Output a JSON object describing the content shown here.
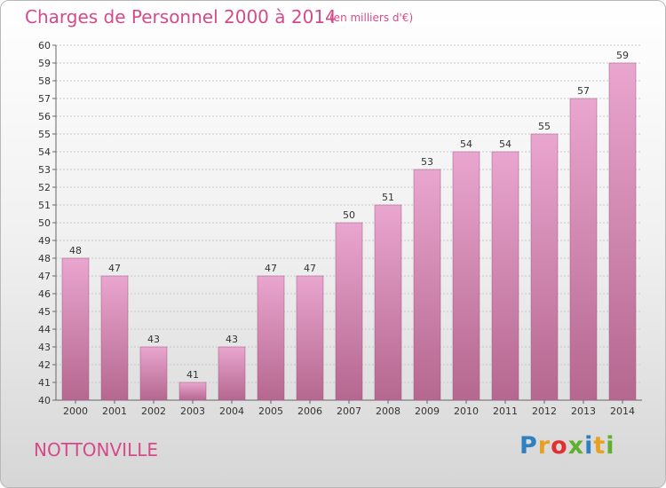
{
  "title": "Charges de Personnel 2000 à 2014",
  "subtitle": "(en milliers d'€)",
  "commune": "NOTTONVILLE",
  "logo": {
    "text": "Proxiti",
    "colors": [
      "#2f80c0",
      "#e8a020",
      "#e03030",
      "#60b030",
      "#2f80c0",
      "#e8a020",
      "#60b030"
    ]
  },
  "colors": {
    "accent": "#d64a8a",
    "bar_top": "#e9a6cf",
    "bar_bottom": "#b5678f",
    "grid": "#c8c8c8",
    "text": "#333333"
  },
  "chart_data": {
    "type": "bar",
    "title": "Charges de Personnel 2000 à 2014",
    "subtitle": "(en milliers d'€)",
    "categories": [
      "2000",
      "2001",
      "2002",
      "2003",
      "2004",
      "2005",
      "2006",
      "2007",
      "2008",
      "2009",
      "2010",
      "2011",
      "2012",
      "2013",
      "2014"
    ],
    "values": [
      48,
      47,
      43,
      41,
      43,
      47,
      47,
      50,
      51,
      53,
      54,
      54,
      55,
      57,
      59
    ],
    "ylim": [
      40,
      60
    ],
    "yticks": [
      40,
      41,
      42,
      43,
      44,
      45,
      46,
      47,
      48,
      49,
      50,
      51,
      52,
      53,
      54,
      55,
      56,
      57,
      58,
      59,
      60
    ],
    "grid": true
  }
}
